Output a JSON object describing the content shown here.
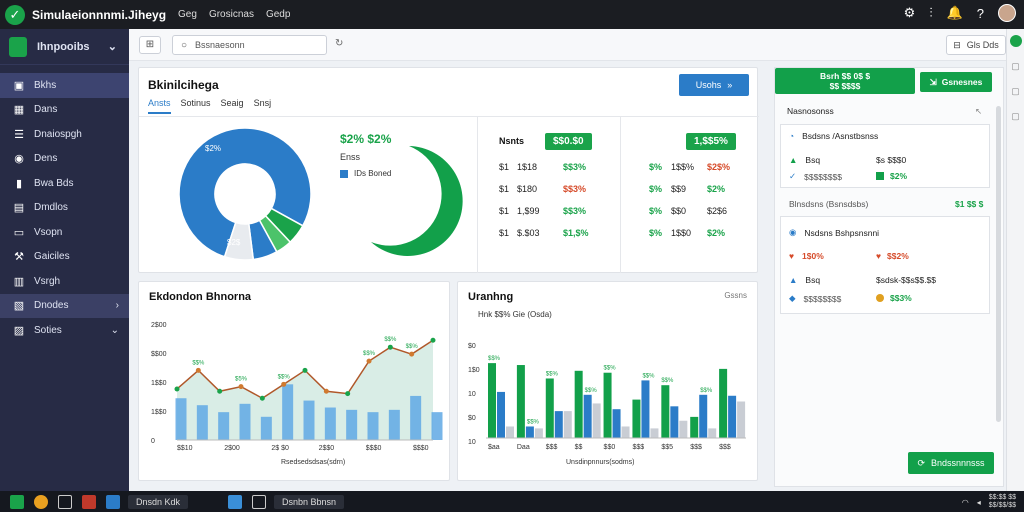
{
  "titlebar": {
    "app_title": "Simulaeionnnmi.Jiheyg",
    "menu1": "Geg",
    "menu2": "Grosicnas",
    "menu3": "Gedp"
  },
  "sidebar": {
    "workspace": "Ihnpooibs",
    "items": [
      {
        "label": "Bkhs"
      },
      {
        "label": "Dans"
      },
      {
        "label": "Dnaiospgh"
      },
      {
        "label": "Dens"
      },
      {
        "label": "Bwa Bds"
      },
      {
        "label": "Dmdlos"
      },
      {
        "label": "Vsopn"
      },
      {
        "label": "Gaiciles"
      },
      {
        "label": "Vsrgh"
      },
      {
        "label": "Dnodes"
      },
      {
        "label": "Soties"
      }
    ]
  },
  "topbar": {
    "search_value": "Bssnaesonn",
    "filter_label": "Gls Dds"
  },
  "overview": {
    "title": "Bkinilcihega",
    "primary_button": "Usohs",
    "tabs": [
      "Ansts",
      "Sotinus",
      "Seaig",
      "Snsj"
    ],
    "donut_label_top": "$2%",
    "donut_label_bottom": "$2$",
    "legend_pct": "$2% $2%",
    "legend_sub": "Enss",
    "legend_item": "IDs Boned",
    "donut_values": [
      78,
      5,
      4,
      6,
      7
    ],
    "donut_colors": [
      "#2b7cc8",
      "#1aa34a",
      "#4cc36a",
      "#2b7cc8",
      "#e8ebef"
    ],
    "table_a": {
      "header_label": "Nsnts",
      "header_pill": "$$0.$0",
      "rows": [
        {
          "a": "$1",
          "b": "1$18",
          "c": "$$3%"
        },
        {
          "a": "$1",
          "b": "$180",
          "c": "$$3%"
        },
        {
          "a": "$1",
          "b": "1,$99",
          "c": "$$3%"
        },
        {
          "a": "$1",
          "b": "$.$03",
          "c": "$1,$%"
        }
      ],
      "row_colors": [
        "green",
        "red",
        "green",
        "green"
      ]
    },
    "table_b": {
      "header_pill": "1,$$5%",
      "rows": [
        {
          "a": "$%",
          "b": "1$$%",
          "c": "$2$%"
        },
        {
          "a": "$%",
          "b": "$$9",
          "c": "$2%"
        },
        {
          "a": "$%",
          "b": "$$0",
          "c": "$2$6"
        },
        {
          "a": "$%",
          "b": "1$$0",
          "c": "$2%"
        }
      ],
      "c_colors": [
        "red",
        "green",
        "dark",
        "green"
      ]
    }
  },
  "line_panel": {
    "title": "Ekdondon Bhnorna",
    "xlabel": "Rsedsedsdsas(sdrn)"
  },
  "bar_panel": {
    "title": "Uranhng",
    "filter": "Gssns",
    "legend": "Hnk $$% Gie (Osda)",
    "xlabel": "Unsdinpnnurs(sodms)"
  },
  "chart_data": [
    {
      "type": "line",
      "title": "Ekdondon Bhnorna",
      "xlabel": "Rsedsedsdsas(sdrn)",
      "ylabel": "",
      "y_ticks": [
        "2$00",
        "$$00",
        "1$$0",
        "1$$0",
        "0"
      ],
      "ylim": [
        0,
        2500
      ],
      "x_tick_labels": [
        "$$10",
        "2$00",
        "2$ $0",
        "2$$0",
        "$$$0",
        "$$$0"
      ],
      "x": [
        0,
        1,
        2,
        3,
        4,
        5,
        6,
        7,
        8,
        9,
        10,
        11,
        12
      ],
      "series": [
        {
          "values": [
            1100,
            1500,
            1050,
            1150,
            900,
            1200,
            1500,
            1050,
            1000,
            1700,
            2000,
            1850,
            2150
          ]
        },
        {
          "values": [
            900,
            750,
            600,
            780,
            500,
            1200,
            850,
            700,
            650,
            600,
            650,
            950,
            600
          ]
        }
      ],
      "point_labels": [
        "$$%",
        "$5%",
        "$$%",
        "$$%",
        "$$%",
        "$$%"
      ]
    },
    {
      "type": "bar",
      "title": "Uranhng",
      "xlabel": "Unsdinpnnurs(sodms)",
      "y_ticks": [
        "$0",
        "1$0",
        "10",
        "$0",
        "10"
      ],
      "ylim": [
        0,
        100
      ],
      "categories": [
        "$aa",
        "Daa",
        "$$$",
        "$$",
        "$$0",
        "$$$",
        "$$5",
        "$$$",
        "$$$"
      ],
      "series": [
        {
          "name": "",
          "values": [
            78,
            76,
            62,
            70,
            68,
            40,
            55,
            22,
            72
          ]
        },
        {
          "name": "",
          "values": [
            48,
            12,
            28,
            45,
            30,
            60,
            33,
            45,
            44
          ]
        },
        {
          "name": "",
          "values": [
            12,
            10,
            28,
            36,
            12,
            10,
            18,
            10,
            38
          ]
        }
      ],
      "colors": [
        "#12a04a",
        "#2b7cc8",
        "#c9cdd4"
      ],
      "bar_labels": [
        "$$%",
        "$$%",
        "$$%",
        "$$%",
        "$$%",
        "$$%",
        "$$%",
        "$$%"
      ]
    }
  ],
  "right_panel": {
    "btn1": "Bsrh $$ 0$ $\n$$ $$$$",
    "btn2": "Gsnesnes",
    "section_title": "Nasnosonss",
    "card1_title": "Bsdsns /Asnstbsnss",
    "card1_r1_a": "Bsq",
    "card1_r1_b": "$s $$$0",
    "card1_r2_a": "$$$$$$$$",
    "card1_r2_b": "$2%",
    "section2_title": "Blnsdsns (Bsnsdsbs)",
    "section2_value": "$1 $$ $",
    "card2_title": "Nsdsns Bshpsnsnni",
    "card2_r1_a": "1$0%",
    "card2_r1_b": "$$2%",
    "card2_r2_a": "Bsq",
    "card2_r2_b": "$sdsk-$$s$$.$$",
    "card2_r3_a": "$$$$$$$$",
    "card2_r3_b": "$$3%"
  },
  "fab_label": "Bndssnnnsss",
  "taskbar": {
    "app1": "Dnsdn Kdk",
    "app2": "Dsnbn Bbnsn",
    "clock": "$$:$$ $$\n$$/$$/$$"
  }
}
